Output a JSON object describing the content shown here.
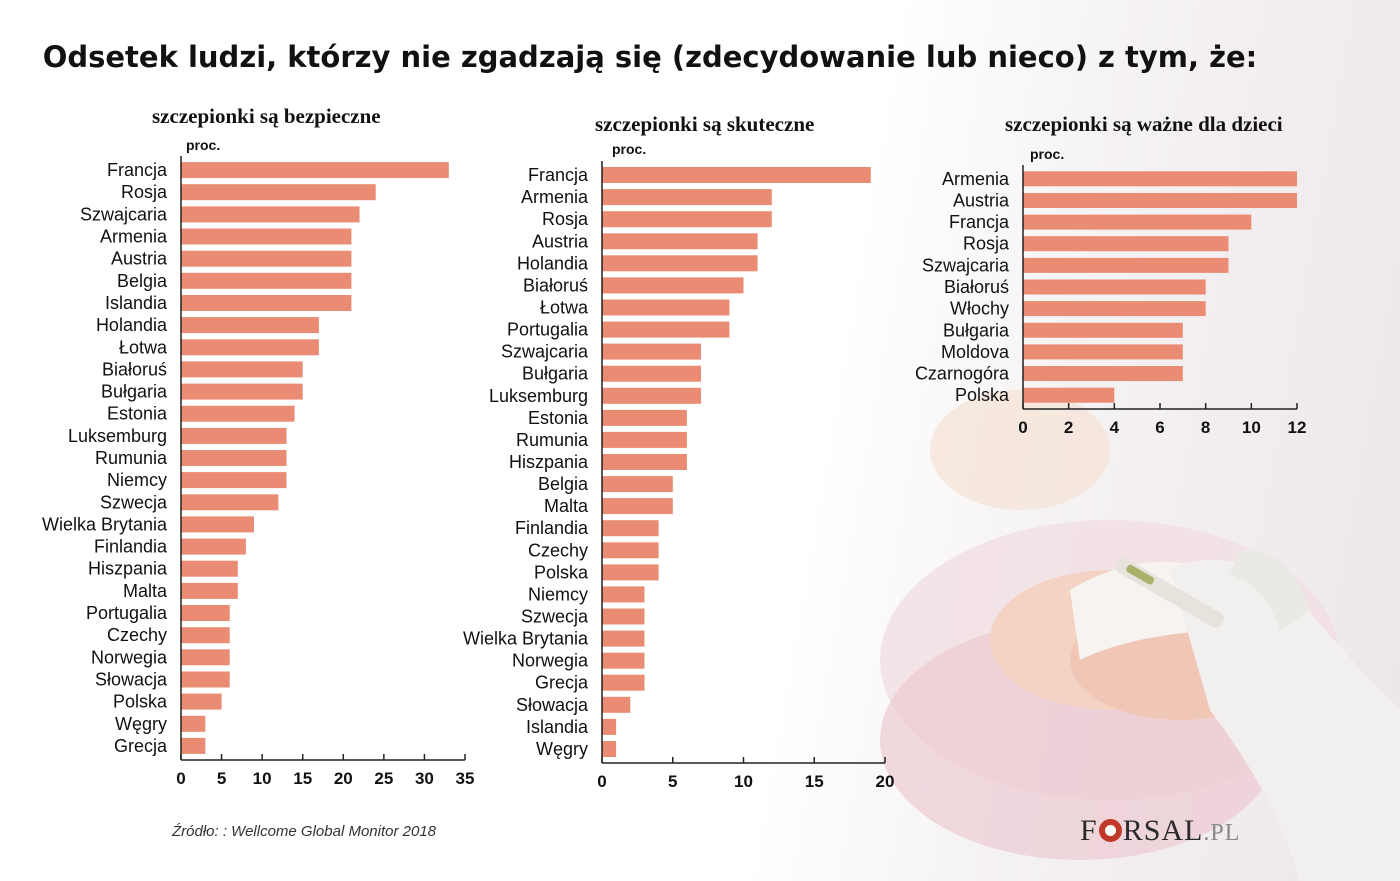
{
  "title": "Odsetek ludzi, którzy nie zgadzają się (zdecydowanie lub nieco) z tym, że:",
  "source": "Źródło: : Wellcome Global Monitor 2018",
  "logo": {
    "part1": "F",
    "part2": "RSAL",
    "tld": ".PL"
  },
  "colors": {
    "bar": "#ea8c73",
    "axis": "#222222"
  },
  "chart_data": [
    {
      "type": "bar",
      "orientation": "horizontal",
      "title": "szczepionki są bezpieczne",
      "unit": "proc.",
      "xlim": [
        0,
        35
      ],
      "ticks": [
        0,
        5,
        10,
        15,
        20,
        25,
        30,
        35
      ],
      "categories": [
        "Francja",
        "Rosja",
        "Szwajcaria",
        "Armenia",
        "Austria",
        "Belgia",
        "Islandia",
        "Holandia",
        "Łotwa",
        "Białoruś",
        "Bułgaria",
        "Estonia",
        "Luksemburg",
        "Rumunia",
        "Niemcy",
        "Szwecja",
        "Wielka Brytania",
        "Finlandia",
        "Hiszpania",
        "Malta",
        "Portugalia",
        "Czechy",
        "Norwegia",
        "Słowacja",
        "Polska",
        "Węgry",
        "Grecja"
      ],
      "values": [
        33,
        24,
        22,
        21,
        21,
        21,
        21,
        17,
        17,
        15,
        15,
        14,
        13,
        13,
        13,
        12,
        9,
        8,
        7,
        7,
        6,
        6,
        6,
        6,
        5,
        3,
        3
      ]
    },
    {
      "type": "bar",
      "orientation": "horizontal",
      "title": "szczepionki są skuteczne",
      "unit": "proc.",
      "xlim": [
        0,
        20
      ],
      "ticks": [
        0,
        5,
        10,
        15,
        20
      ],
      "categories": [
        "Francja",
        "Armenia",
        "Rosja",
        "Austria",
        "Holandia",
        "Białoruś",
        "Łotwa",
        "Portugalia",
        "Szwajcaria",
        "Bułgaria",
        "Luksemburg",
        "Estonia",
        "Rumunia",
        "Hiszpania",
        "Belgia",
        "Malta",
        "Finlandia",
        "Czechy",
        "Polska",
        "Niemcy",
        "Szwecja",
        "Wielka Brytania",
        "Norwegia",
        "Grecja",
        "Słowacja",
        "Islandia",
        "Węgry"
      ],
      "values": [
        19,
        12,
        12,
        11,
        11,
        10,
        9,
        9,
        7,
        7,
        7,
        6,
        6,
        6,
        5,
        5,
        4,
        4,
        4,
        3,
        3,
        3,
        3,
        3,
        2,
        1,
        1
      ]
    },
    {
      "type": "bar",
      "orientation": "horizontal",
      "title": "szczepionki są ważne dla dzieci",
      "unit": "proc.",
      "xlim": [
        0,
        12
      ],
      "ticks": [
        0,
        2,
        4,
        6,
        8,
        10,
        12
      ],
      "categories": [
        "Armenia",
        "Austria",
        "Francja",
        "Rosja",
        "Szwajcaria",
        "Białoruś",
        "Włochy",
        "Bułgaria",
        "Moldova",
        "Czarnogóra",
        "Polska"
      ],
      "values": [
        12,
        12,
        10,
        9,
        9,
        8,
        8,
        7,
        7,
        7,
        4
      ]
    }
  ]
}
